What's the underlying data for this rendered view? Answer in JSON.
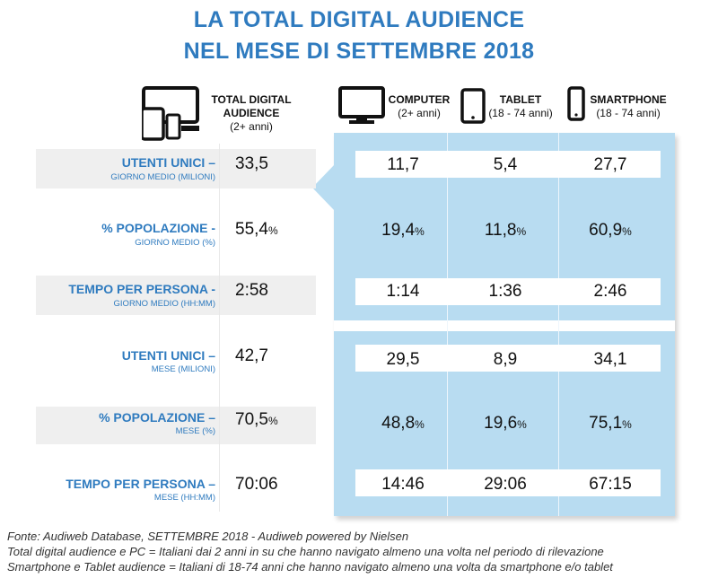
{
  "title_lines": [
    "LA TOTAL DIGITAL AUDIENCE",
    "NEL MESE DI SETTEMBRE 2018"
  ],
  "columns": [
    {
      "name": "TOTAL DIGITAL AUDIENCE",
      "name_line1": "TOTAL DIGITAL",
      "name_line2": "AUDIENCE",
      "sub": "(2+ anni)",
      "icon": "multi-device-icon"
    },
    {
      "name": "COMPUTER",
      "sub": "(2+ anni)",
      "icon": "monitor-icon"
    },
    {
      "name": "TABLET",
      "sub": "(18 - 74 anni)",
      "icon": "tablet-icon"
    },
    {
      "name": "SMARTPHONE",
      "sub": "(18 - 74 anni)",
      "icon": "smartphone-icon"
    }
  ],
  "rows": [
    {
      "label": "UTENTI UNICI –",
      "sub": "GIORNO MEDIO (MILIONI)",
      "total": "33,5",
      "total_unit": "",
      "computer": "11,7",
      "tablet": "5,4",
      "smartphone": "27,7",
      "unit": ""
    },
    {
      "label": "% POPOLAZIONE -",
      "sub": "GIORNO MEDIO (%)",
      "total": "55,4",
      "total_unit": "%",
      "computer": "19,4",
      "tablet": "11,8",
      "smartphone": "60,9",
      "unit": "%"
    },
    {
      "label": "TEMPO PER PERSONA -",
      "sub": "GIORNO MEDIO (HH:MM)",
      "total": "2:58",
      "total_unit": "",
      "computer": "1:14",
      "tablet": "1:36",
      "smartphone": "2:46",
      "unit": ""
    },
    {
      "label": "UTENTI UNICI –",
      "sub": "MESE (MILIONI)",
      "total": "42,7",
      "total_unit": "",
      "computer": "29,5",
      "tablet": "8,9",
      "smartphone": "34,1",
      "unit": ""
    },
    {
      "label": "% POPOLAZIONE –",
      "sub": "MESE (%)",
      "total": "70,5",
      "total_unit": "%",
      "computer": "48,8",
      "tablet": "19,6",
      "smartphone": "75,1",
      "unit": "%"
    },
    {
      "label": "TEMPO PER PERSONA –",
      "sub": "MESE (HH:MM)",
      "total": "70:06",
      "total_unit": "",
      "computer": "14:46",
      "tablet": "29:06",
      "smartphone": "67:15",
      "unit": ""
    }
  ],
  "footer": [
    "Fonte: Audiweb Database, SETTEMBRE 2018 - Audiweb powered by Nielsen",
    "Total digital audience e PC = Italiani dai 2 anni in su che hanno navigato almeno una volta nel periodo di rilevazione",
    "Smartphone e Tablet audience = Italiani di 18-74 anni che hanno navigato almeno una volta da smartphone e/o tablet"
  ],
  "colors": {
    "title": "#2f7bbf",
    "panel": "#b8dcf1",
    "grey_row": "#efefef"
  },
  "chart_data": {
    "type": "table",
    "title": "LA TOTAL DIGITAL AUDIENCE NEL MESE DI SETTEMBRE 2018",
    "columns": [
      "TOTAL DIGITAL AUDIENCE (2+ anni)",
      "COMPUTER (2+ anni)",
      "TABLET (18 - 74 anni)",
      "SMARTPHONE (18 - 74 anni)"
    ],
    "rows": [
      {
        "metric": "UTENTI UNICI – GIORNO MEDIO (MILIONI)",
        "values": [
          "33,5",
          "11,7",
          "5,4",
          "27,7"
        ]
      },
      {
        "metric": "% POPOLAZIONE - GIORNO MEDIO (%)",
        "values": [
          "55,4%",
          "19,4%",
          "11,8%",
          "60,9%"
        ]
      },
      {
        "metric": "TEMPO PER PERSONA - GIORNO MEDIO (HH:MM)",
        "values": [
          "2:58",
          "1:14",
          "1:36",
          "2:46"
        ]
      },
      {
        "metric": "UTENTI UNICI – MESE (MILIONI)",
        "values": [
          "42,7",
          "29,5",
          "8,9",
          "34,1"
        ]
      },
      {
        "metric": "% POPOLAZIONE – MESE (%)",
        "values": [
          "70,5%",
          "48,8%",
          "19,6%",
          "75,1%"
        ]
      },
      {
        "metric": "TEMPO PER PERSONA – MESE (HH:MM)",
        "values": [
          "70:06",
          "14:46",
          "29:06",
          "67:15"
        ]
      }
    ]
  }
}
